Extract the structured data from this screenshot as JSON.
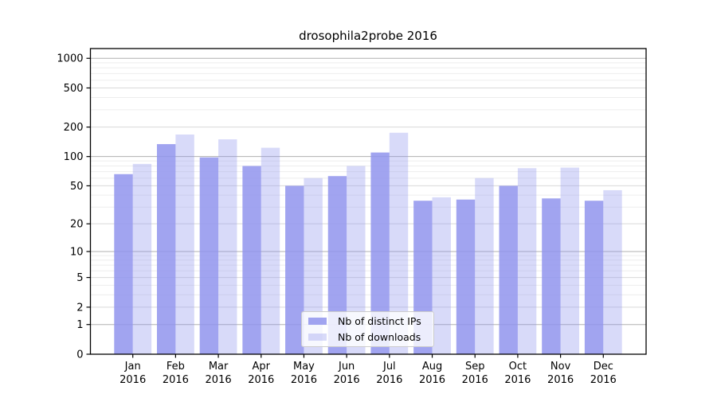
{
  "chart_data": {
    "type": "bar",
    "title": "drosophila2probe 2016",
    "categories": [
      "Jan",
      "Feb",
      "Mar",
      "Apr",
      "May",
      "Jun",
      "Jul",
      "Aug",
      "Sep",
      "Oct",
      "Nov",
      "Dec"
    ],
    "year": "2016",
    "series": [
      {
        "name": "Nb of distinct IPs",
        "values": [
          66,
          134,
          98,
          80,
          50,
          63,
          110,
          35,
          36,
          50,
          37,
          35
        ],
        "color": "#9094ed",
        "opacity": 0.85
      },
      {
        "name": "Nb of downloads",
        "values": [
          84,
          168,
          150,
          123,
          60,
          80,
          175,
          38,
          60,
          76,
          77,
          45
        ],
        "color": "#9094ed",
        "opacity": 0.35
      }
    ],
    "y_ticks": [
      0,
      1,
      2,
      5,
      10,
      20,
      50,
      100,
      200,
      500,
      1000
    ],
    "y_scale": "log10(1+v)",
    "ylim": [
      0,
      1300
    ],
    "grid": true,
    "legend_position": "inside-bottom-center",
    "colors": {
      "grid_major": "#b0b0b0",
      "grid_medium": "#d9d9d9",
      "grid_minor": "#ededed",
      "axis": "#000000",
      "text": "#000000"
    }
  }
}
